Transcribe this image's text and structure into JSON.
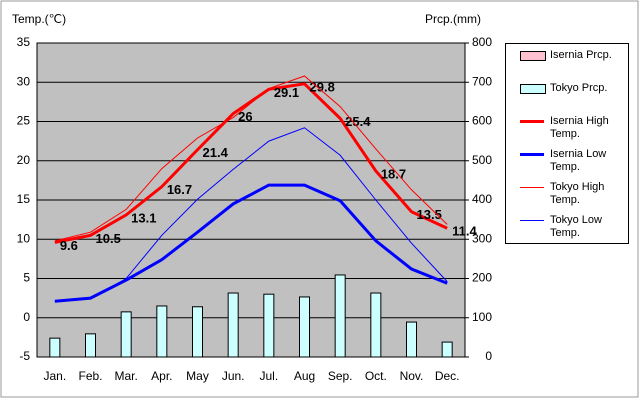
{
  "chart_data": {
    "type": "line",
    "y_label": "Temp.(℃)",
    "y2_label": "Prcp.(mm)",
    "categories": [
      "Jan.",
      "Feb.",
      "Mar.",
      "Apr.",
      "May",
      "Jun.",
      "Jul.",
      "Aug",
      "Sep.",
      "Oct.",
      "Nov.",
      "Dec."
    ],
    "ylim": [
      -5,
      35
    ],
    "yticks": [
      -5,
      0,
      5,
      10,
      15,
      20,
      25,
      30,
      35
    ],
    "y2lim": [
      0,
      800
    ],
    "y2ticks": [
      0,
      100,
      200,
      300,
      400,
      500,
      600,
      700,
      800
    ],
    "grid": true,
    "legend": "right",
    "series": [
      {
        "name": "Isernia Prcp.",
        "kind": "bar",
        "axis": "y2",
        "color": "#ffc0d0",
        "values": [
          null,
          null,
          null,
          null,
          null,
          null,
          null,
          null,
          null,
          null,
          null,
          null
        ]
      },
      {
        "name": "Tokyo Prcp.",
        "kind": "bar",
        "axis": "y2",
        "color": "#ccffff",
        "values": [
          48,
          59,
          115,
          130,
          128,
          163,
          160,
          153,
          209,
          163,
          89,
          38
        ]
      },
      {
        "name": "Isernia High Temp.",
        "kind": "line",
        "color": "#ff0000",
        "width": 3,
        "labels": true,
        "values": [
          9.6,
          10.5,
          13.1,
          16.7,
          21.4,
          26,
          29.1,
          29.8,
          25.4,
          18.7,
          13.5,
          11.4
        ]
      },
      {
        "name": "Isernia Low Temp.",
        "kind": "line",
        "color": "#0000ff",
        "width": 3,
        "values": [
          2.1,
          2.5,
          4.8,
          7.4,
          10.9,
          14.5,
          16.9,
          16.9,
          14.9,
          9.8,
          6.2,
          4.4
        ]
      },
      {
        "name": "Tokyo High Temp.",
        "kind": "line",
        "color": "#ff0000",
        "width": 1,
        "values": [
          9.8,
          10.9,
          13.8,
          19.0,
          22.9,
          25.5,
          29.2,
          30.8,
          26.9,
          21.5,
          16.3,
          11.9
        ]
      },
      {
        "name": "Tokyo Low Temp.",
        "kind": "line",
        "color": "#0000ff",
        "width": 1,
        "values": [
          2.1,
          2.4,
          5.0,
          10.5,
          15.1,
          18.9,
          22.5,
          24.2,
          20.7,
          15.0,
          9.5,
          4.6
        ]
      }
    ]
  }
}
